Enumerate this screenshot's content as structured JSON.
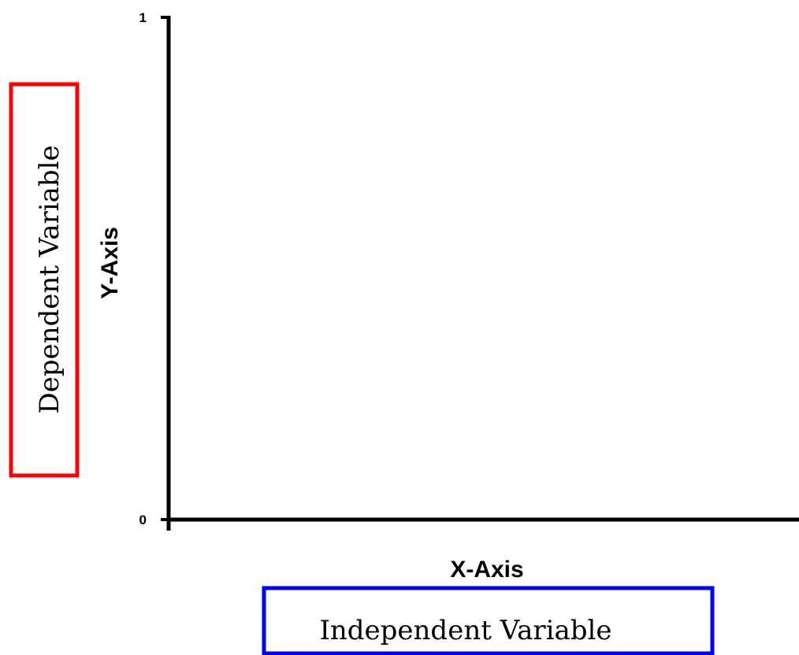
{
  "chart_data": {
    "type": "line",
    "title": "",
    "xlabel": "X-Axis",
    "ylabel": "Y-Axis",
    "ylim": [
      0,
      1
    ],
    "yticks": [
      "0",
      "1"
    ],
    "series": []
  },
  "annotations": {
    "dependent_variable": "Dependent Variable",
    "independent_variable": "Independent Variable"
  },
  "colors": {
    "dependent_box": "#ff0000",
    "independent_box": "#0000ff",
    "axis": "#000000"
  }
}
